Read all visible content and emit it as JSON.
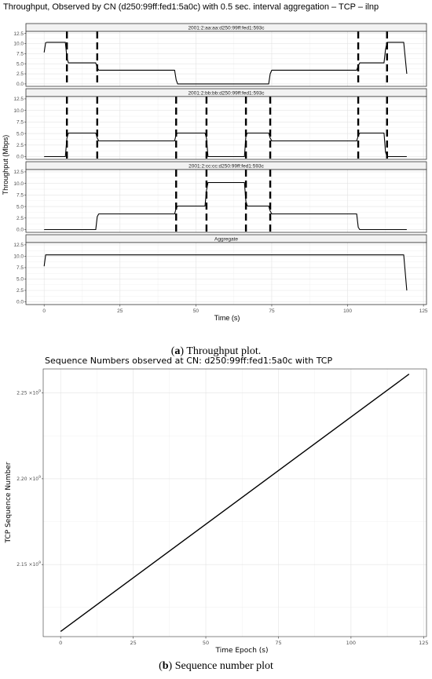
{
  "figure_a": {
    "title": "Throughput, Observed by CN (d250:99ff:fed1:5a0c) with 0.5 sec. interval aggregation – TCP – ilnp",
    "caption_letter": "a",
    "caption_text": " Throughput plot."
  },
  "figure_b": {
    "title": "Sequence Numbers observed at CN: d250:99ff:fed1:5a0c with TCP",
    "caption_letter": "b",
    "caption_text": " Sequence number plot"
  },
  "chart_data": [
    {
      "type": "line",
      "title": "Throughput, Observed by CN (d250:99ff:fed1:5a0c) with 0.5 sec. interval aggregation – TCP – ilnp",
      "xlabel": "Time (s)",
      "ylabel": "Throughput (Mbps)",
      "xlim": [
        -6,
        126
      ],
      "ylim": [
        -0.6,
        13
      ],
      "x_ticks": [
        0,
        25,
        50,
        75,
        100,
        125
      ],
      "y_ticks": [
        0.0,
        2.5,
        5.0,
        7.5,
        10.0,
        12.5
      ],
      "y_tick_labels": [
        "0.0",
        "2.5",
        "5.0",
        "7.5",
        "10.0",
        "12.5"
      ],
      "grid": true,
      "series": [
        {
          "name": "2001:2:aa:aa:d250:99ff:fed1:593c",
          "x": [
            0,
            0.5,
            1,
            7,
            7.5,
            8,
            17,
            17.5,
            18,
            43,
            43.5,
            44,
            74,
            74.5,
            75,
            103,
            103.5,
            104,
            112,
            112.5,
            113,
            118.5,
            119.5
          ],
          "y": [
            7.8,
            10.2,
            10.3,
            10.3,
            6.5,
            5.2,
            5.2,
            4.0,
            3.4,
            3.4,
            1.0,
            0.0,
            0.0,
            2.5,
            3.4,
            3.4,
            4.5,
            5.2,
            5.2,
            8.5,
            10.3,
            10.3,
            2.5
          ],
          "vlines": [
            7.5,
            17.5,
            103.5,
            113
          ]
        },
        {
          "name": "2001:2:bb:bb:d250:99ff:fed1:593c",
          "x": [
            0,
            7,
            7.5,
            8,
            17,
            17.5,
            18,
            43,
            43.5,
            44,
            53,
            53.5,
            54,
            66,
            66.5,
            67,
            74,
            74.5,
            75,
            103,
            103.5,
            104,
            112,
            112.5,
            113,
            119.5
          ],
          "y": [
            0.0,
            0.0,
            4.0,
            5.1,
            5.1,
            4.0,
            3.4,
            3.4,
            4.8,
            5.1,
            5.1,
            4.0,
            0.0,
            0.0,
            4.5,
            5.1,
            5.1,
            4.0,
            3.4,
            3.4,
            4.5,
            5.1,
            5.1,
            1.0,
            0.0,
            0.0
          ],
          "vlines": [
            7.5,
            17.5,
            43.5,
            53.5,
            66.5,
            74.5,
            103.5,
            113
          ]
        },
        {
          "name": "2001:2:cc:cc:d250:99ff:fed1:593c",
          "x": [
            0,
            17,
            17.5,
            18,
            43,
            43.5,
            44,
            53,
            53.5,
            54,
            66,
            66.5,
            67,
            74,
            74.5,
            75,
            103,
            103.5,
            104,
            119.5
          ],
          "y": [
            0.0,
            0.0,
            2.8,
            3.4,
            3.4,
            4.6,
            5.1,
            5.1,
            8.5,
            10.2,
            10.2,
            6.0,
            5.1,
            5.1,
            4.0,
            3.4,
            3.4,
            0.5,
            0.0,
            0.0
          ],
          "vlines": [
            43.5,
            53.5,
            66.5,
            74.5
          ]
        },
        {
          "name": "Aggregate",
          "x": [
            0,
            0.5,
            1,
            118.5,
            119.5
          ],
          "y": [
            7.8,
            10.3,
            10.3,
            10.3,
            2.5
          ],
          "vlines": []
        }
      ]
    },
    {
      "type": "line",
      "title": "Sequence Numbers observed at CN: d250:99ff:fed1:5a0c with TCP",
      "xlabel": "Time Epoch (s)",
      "ylabel": "TCP Sequence Number",
      "xlim": [
        -6,
        126
      ],
      "ylim": [
        2108000000,
        2264000000
      ],
      "x_ticks": [
        0,
        25,
        50,
        75,
        100,
        125
      ],
      "y_ticks": [
        2150000000,
        2200000000,
        2250000000
      ],
      "y_tick_mantissa": [
        "2.15",
        "2.20",
        "2.25"
      ],
      "y_tick_base": "×10",
      "y_tick_exp": "9",
      "grid": true,
      "series": [
        {
          "x": [
            0,
            120
          ],
          "y": [
            2111000000,
            2261000000
          ]
        }
      ]
    }
  ]
}
